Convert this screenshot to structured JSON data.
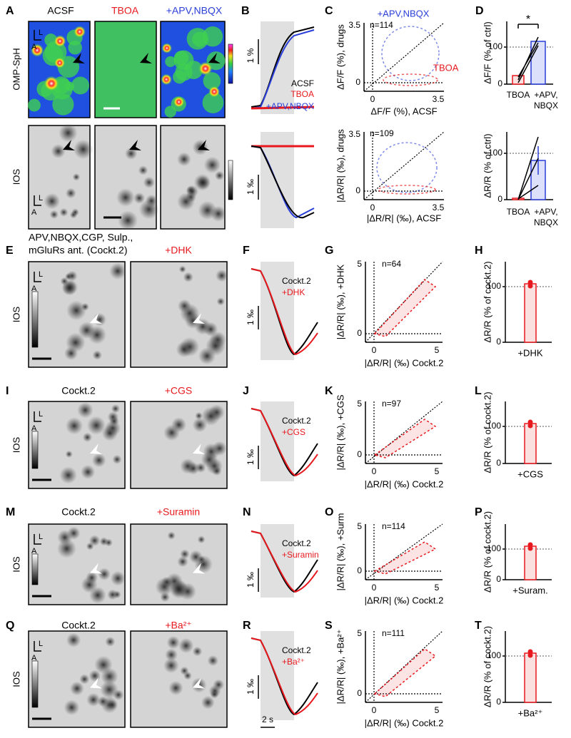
{
  "panel_A": {
    "label": "A",
    "columns": [
      "ACSF",
      "TBOA",
      "+APV,NBQX"
    ],
    "row_labels": [
      "OMP-SpH",
      "IOS"
    ],
    "orientation": [
      "L",
      "A"
    ]
  },
  "panel_B": {
    "label": "B",
    "scale_top": "1 %",
    "legend": [
      "ACSF",
      "TBOA",
      "+APV,NBQX"
    ],
    "scale_bottom": "1 ‰"
  },
  "panel_C": {
    "label": "C",
    "top": {
      "legend": [
        "+APV,NBQX",
        "TBOA"
      ],
      "n": "n=114",
      "y_axis": "ΔF/F (%), drugs",
      "x_axis": "ΔF/F (%), ACSF",
      "yticks": [
        "0",
        "3.5"
      ],
      "xticks": [
        "0",
        "3.5"
      ]
    },
    "bottom": {
      "n": "n=109",
      "y_axis": "|ΔR/R| (‰), drugs",
      "x_axis": "|ΔR/R| (‰), ACSF",
      "yticks": [
        "0",
        "3.5"
      ],
      "xticks": [
        "0",
        "3.5"
      ]
    }
  },
  "panel_D": {
    "label": "D",
    "top": {
      "y_axis": "ΔF/F (% of ctrl)",
      "yticks": [
        "0",
        "100"
      ],
      "categories": [
        [
          "TBOA"
        ],
        [
          "+APV,",
          "NBQX"
        ]
      ],
      "significance": "*"
    },
    "bottom": {
      "y_axis": "ΔR/R (% of ctrl)",
      "yticks": [
        "0",
        "100"
      ],
      "categories": [
        [
          "TBOA"
        ],
        [
          "+APV,",
          "NBQX"
        ]
      ]
    }
  },
  "drug_rows": [
    {
      "image_panel": {
        "label": "E",
        "left_title": [
          "APV,NBQX,CGP, Sulp.,",
          "mGluRs ant. (Cockt.2)"
        ],
        "right_title": "+DHK",
        "row_label": "IOS",
        "orientation": [
          "L",
          "A"
        ]
      },
      "trace_panel": {
        "label": "F",
        "legend": [
          "Cockt.2",
          "+DHK"
        ],
        "scale": "1 ‰"
      },
      "scatter_panel": {
        "label": "G",
        "n": "n=64",
        "y_axis": "|ΔR/R| (‰), +DHK",
        "x_axis": "|ΔR/R| (‰) Cockt.2",
        "xticks": [
          "0",
          "5"
        ],
        "yticks": [
          "0",
          "5"
        ]
      },
      "bar_panel": {
        "label": "H",
        "y_axis": "ΔR/R (% of cockt.2)",
        "yticks": [
          "0",
          "100"
        ],
        "category": "+DHK"
      }
    },
    {
      "image_panel": {
        "label": "I",
        "left_title": [
          "Cockt.2"
        ],
        "right_title": "+CGS",
        "row_label": "IOS",
        "orientation": [
          "L",
          "A"
        ]
      },
      "trace_panel": {
        "label": "J",
        "legend": [
          "Cockt.2",
          "+CGS"
        ],
        "scale": "1 ‰"
      },
      "scatter_panel": {
        "label": "K",
        "n": "n=97",
        "y_axis": "|ΔR/R| (‰), +CGS",
        "x_axis": "|ΔR/R| (‰) Cockt.2",
        "xticks": [
          "0",
          "5"
        ],
        "yticks": [
          "0",
          "5"
        ]
      },
      "bar_panel": {
        "label": "L",
        "y_axis": "ΔR/R (% of cockt.2)",
        "yticks": [
          "0",
          "100"
        ],
        "category": "+CGS"
      }
    },
    {
      "image_panel": {
        "label": "M",
        "left_title": [
          "Cockt.2"
        ],
        "right_title": "+Suramin",
        "row_label": "IOS",
        "orientation": [
          "L",
          "A"
        ]
      },
      "trace_panel": {
        "label": "N",
        "legend": [
          "Cockt.2",
          "+Suramin"
        ],
        "scale": "1 ‰"
      },
      "scatter_panel": {
        "label": "O",
        "n": "n=114",
        "y_axis": "|ΔR/R| (‰), +Surm",
        "x_axis": "|ΔR/R| (‰) Cockt.2",
        "xticks": [
          "0",
          "5"
        ],
        "yticks": [
          "0",
          "5"
        ]
      },
      "bar_panel": {
        "label": "P",
        "y_axis": "ΔR/R (% of cockt.2)",
        "yticks": [
          "0",
          "100"
        ],
        "category": "+Suram."
      }
    },
    {
      "image_panel": {
        "label": "Q",
        "left_title": [
          "Cockt.2"
        ],
        "right_title": "+Ba²⁺",
        "row_label": "IOS",
        "orientation": [
          "L",
          "A"
        ]
      },
      "trace_panel": {
        "label": "R",
        "legend": [
          "Cockt.2",
          "+Ba²⁺"
        ],
        "scale": "1 ‰",
        "time_scale": "2 s"
      },
      "scatter_panel": {
        "label": "S",
        "n": "n=111",
        "y_axis": "|ΔR/R| (‰), +Ba²⁺",
        "x_axis": "|ΔR/R| (‰) Cockt.2",
        "xticks": [
          "0",
          "5"
        ],
        "yticks": [
          "0",
          "5"
        ]
      },
      "bar_panel": {
        "label": "T",
        "y_axis": "ΔR/R (% of cockt.2)",
        "yticks": [
          "0",
          "100"
        ],
        "category": "+Ba²⁺"
      }
    }
  ]
}
